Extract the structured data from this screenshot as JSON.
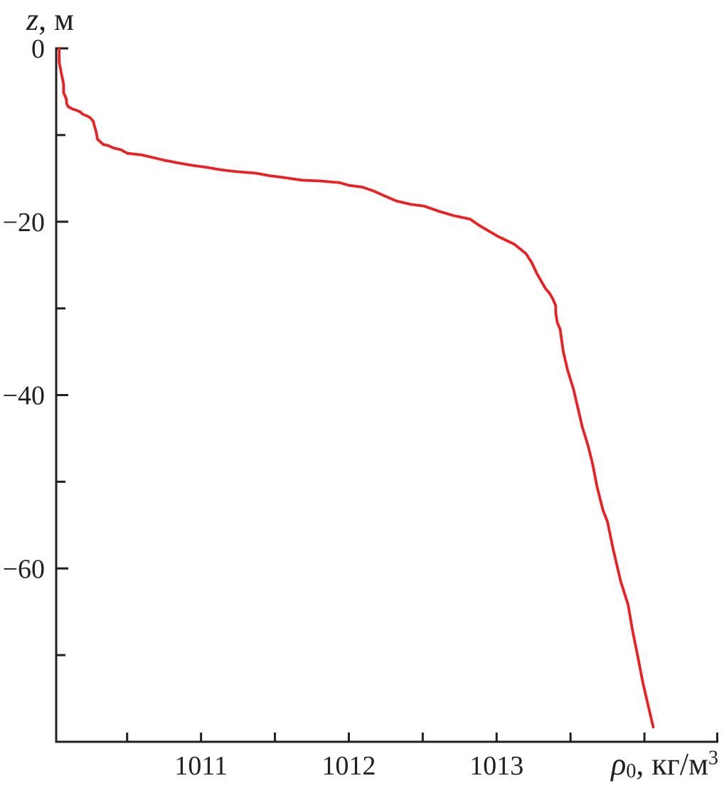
{
  "figure": {
    "background": "#ffffff",
    "axis_color": "#231f20",
    "text_color": "#231f20"
  },
  "chart_data": {
    "type": "line",
    "title": "",
    "grid": false,
    "legend": false,
    "x_axis": {
      "title_parts": {
        "variable": "ρ",
        "subscript": "0",
        "unit": ", кг/м",
        "superscript": "3"
      },
      "range": [
        1010.02,
        1014.5
      ],
      "ticks": [
        1010.5,
        1011,
        1011.5,
        1012,
        1012.5,
        1013,
        1013.5,
        1014
      ],
      "labeled_ticks": [
        {
          "value": 1011,
          "label": "1011"
        },
        {
          "value": 1012,
          "label": "1012"
        },
        {
          "value": 1013,
          "label": "1013"
        }
      ],
      "end_tick": true
    },
    "y_axis": {
      "title_parts": {
        "variable": "z",
        "unit": ", м"
      },
      "range": [
        -80,
        0
      ],
      "ticks": [
        0,
        -10,
        -20,
        -30,
        -40,
        -50,
        -60,
        -70
      ],
      "labeled_ticks": [
        {
          "value": 0,
          "label": "0"
        },
        {
          "value": -20,
          "label": "−20"
        },
        {
          "value": -40,
          "label": "−40"
        },
        {
          "value": -60,
          "label": "−60"
        }
      ]
    },
    "series": [
      {
        "name": "potential-density-profile",
        "color": "#ed1f20",
        "points": [
          [
            1010.04,
            0
          ],
          [
            1010.04,
            -1.6
          ],
          [
            1010.05,
            -2.4
          ],
          [
            1010.06,
            -3.3
          ],
          [
            1010.07,
            -4.1
          ],
          [
            1010.07,
            -5.1
          ],
          [
            1010.08,
            -5.5
          ],
          [
            1010.09,
            -5.9
          ],
          [
            1010.09,
            -6.3
          ],
          [
            1010.1,
            -6.7
          ],
          [
            1010.13,
            -7.0
          ],
          [
            1010.15,
            -7.1
          ],
          [
            1010.18,
            -7.3
          ],
          [
            1010.2,
            -7.6
          ],
          [
            1010.23,
            -7.8
          ],
          [
            1010.25,
            -8.0
          ],
          [
            1010.27,
            -8.4
          ],
          [
            1010.28,
            -9.0
          ],
          [
            1010.29,
            -9.6
          ],
          [
            1010.3,
            -10.5
          ],
          [
            1010.32,
            -10.8
          ],
          [
            1010.34,
            -11.1
          ],
          [
            1010.37,
            -11.2
          ],
          [
            1010.41,
            -11.5
          ],
          [
            1010.46,
            -11.7
          ],
          [
            1010.5,
            -12.1
          ],
          [
            1010.6,
            -12.3
          ],
          [
            1010.75,
            -12.9
          ],
          [
            1010.84,
            -13.2
          ],
          [
            1010.94,
            -13.5
          ],
          [
            1011.03,
            -13.7
          ],
          [
            1011.13,
            -14.0
          ],
          [
            1011.23,
            -14.2
          ],
          [
            1011.37,
            -14.4
          ],
          [
            1011.47,
            -14.7
          ],
          [
            1011.56,
            -14.9
          ],
          [
            1011.68,
            -15.2
          ],
          [
            1011.81,
            -15.3
          ],
          [
            1011.94,
            -15.5
          ],
          [
            1012.0,
            -15.8
          ],
          [
            1012.09,
            -16.0
          ],
          [
            1012.16,
            -16.4
          ],
          [
            1012.24,
            -17.0
          ],
          [
            1012.32,
            -17.6
          ],
          [
            1012.42,
            -18.0
          ],
          [
            1012.51,
            -18.2
          ],
          [
            1012.61,
            -18.8
          ],
          [
            1012.71,
            -19.3
          ],
          [
            1012.82,
            -19.7
          ],
          [
            1012.88,
            -20.4
          ],
          [
            1013.01,
            -21.7
          ],
          [
            1013.12,
            -22.6
          ],
          [
            1013.2,
            -23.7
          ],
          [
            1013.24,
            -24.8
          ],
          [
            1013.27,
            -25.9
          ],
          [
            1013.31,
            -27.1
          ],
          [
            1013.33,
            -27.7
          ],
          [
            1013.36,
            -28.3
          ],
          [
            1013.38,
            -28.9
          ],
          [
            1013.4,
            -29.7
          ],
          [
            1013.4,
            -30.5
          ],
          [
            1013.41,
            -31.6
          ],
          [
            1013.43,
            -32.4
          ],
          [
            1013.45,
            -34.9
          ],
          [
            1013.48,
            -37.1
          ],
          [
            1013.52,
            -39.3
          ],
          [
            1013.55,
            -41.5
          ],
          [
            1013.58,
            -43.7
          ],
          [
            1013.62,
            -45.9
          ],
          [
            1013.65,
            -48.0
          ],
          [
            1013.68,
            -50.6
          ],
          [
            1013.72,
            -53.3
          ],
          [
            1013.75,
            -54.6
          ],
          [
            1013.79,
            -57.9
          ],
          [
            1013.84,
            -61.5
          ],
          [
            1013.89,
            -64.2
          ],
          [
            1013.92,
            -67.2
          ],
          [
            1013.95,
            -69.7
          ],
          [
            1013.99,
            -73.2
          ],
          [
            1014.02,
            -75.4
          ],
          [
            1014.05,
            -77.6
          ],
          [
            1014.06,
            -78.3
          ]
        ]
      }
    ]
  }
}
